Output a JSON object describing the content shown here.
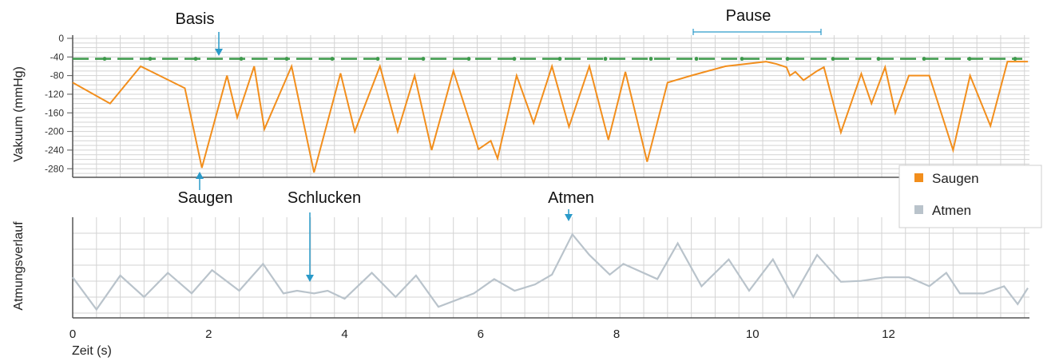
{
  "chart_data": [
    {
      "type": "line",
      "ylabel": "Vakuum (mmHg)",
      "xlim": [
        0,
        14.05
      ],
      "ylim": [
        -295,
        0
      ],
      "yticks": [
        0,
        -40,
        -80,
        -120,
        -160,
        -200,
        -240,
        -280
      ],
      "grid": true,
      "baseline": {
        "value": -44
      },
      "series": [
        {
          "name": "Saugen",
          "x": [
            0,
            0.55,
            1.0,
            1.65,
            1.9,
            2.27,
            2.42,
            2.67,
            2.82,
            3.22,
            3.55,
            3.94,
            4.15,
            4.52,
            4.78,
            5.03,
            5.28,
            5.6,
            5.97,
            6.15,
            6.25,
            6.53,
            6.78,
            7.05,
            7.3,
            7.6,
            7.88,
            8.13,
            8.45,
            8.75,
            9.1,
            9.6,
            10.2,
            10.35,
            10.5,
            10.55,
            10.63,
            10.75,
            10.95,
            11.05,
            11.3,
            11.6,
            11.75,
            11.95,
            12.1,
            12.3,
            12.5,
            12.6,
            12.95,
            13.2,
            13.5,
            13.75,
            13.9,
            14.05
          ],
          "y": [
            -95,
            -140,
            -60,
            -107,
            -278,
            -80,
            -170,
            -60,
            -195,
            -60,
            -288,
            -75,
            -200,
            -60,
            -200,
            -80,
            -240,
            -70,
            -238,
            -220,
            -258,
            -80,
            -182,
            -60,
            -190,
            -60,
            -218,
            -72,
            -265,
            -95,
            -80,
            -60,
            -50,
            -55,
            -62,
            -80,
            -72,
            -90,
            -70,
            -62,
            -202,
            -76,
            -140,
            -62,
            -160,
            -80,
            -80,
            -80,
            -240,
            -80,
            -188,
            -50,
            -50,
            -50
          ]
        }
      ],
      "annotations": [
        "Basis",
        "Saugen",
        "Schlucken",
        "Atmen",
        "Pause"
      ]
    },
    {
      "type": "line",
      "ylabel": "Atmungsverlauf",
      "xlabel": "Zeit (s)",
      "xlim": [
        0,
        14.05
      ],
      "ylim": [
        0,
        100
      ],
      "xticks": [
        0,
        2,
        4,
        6,
        8,
        10,
        12
      ],
      "grid": true,
      "series": [
        {
          "name": "Atmen",
          "x": [
            0,
            0.35,
            0.7,
            1.05,
            1.4,
            1.75,
            2.05,
            2.45,
            2.8,
            3.1,
            3.3,
            3.55,
            3.75,
            4.0,
            4.4,
            4.75,
            5.05,
            5.38,
            5.9,
            6.2,
            6.5,
            6.8,
            7.05,
            7.35,
            7.6,
            7.9,
            8.1,
            8.6,
            8.9,
            9.25,
            9.65,
            9.95,
            10.3,
            10.6,
            10.95,
            11.3,
            11.6,
            11.95,
            12.3,
            12.6,
            12.85,
            13.05,
            13.4,
            13.7,
            13.9,
            14.05
          ],
          "y": [
            40,
            4,
            42,
            18,
            45,
            22,
            48,
            25,
            55,
            22,
            25,
            22,
            25,
            16,
            45,
            18,
            42,
            7,
            22,
            38,
            25,
            32,
            43,
            88,
            65,
            43,
            55,
            38,
            78,
            30,
            60,
            25,
            60,
            18,
            65,
            35,
            36,
            40,
            40,
            30,
            45,
            22,
            22,
            30,
            10,
            28
          ]
        }
      ]
    }
  ],
  "legend": {
    "items": [
      {
        "name": "Saugen",
        "color": "#f28e1c"
      },
      {
        "name": "Atmen",
        "color": "#b9c3cb"
      }
    ]
  },
  "colors": {
    "suck": "#f28e1c",
    "breath": "#b9c3cb",
    "baseline": "#3c9a4a",
    "annotation": "#2a9ac9",
    "grid": "#d3d3d3",
    "axis": "#555555"
  }
}
